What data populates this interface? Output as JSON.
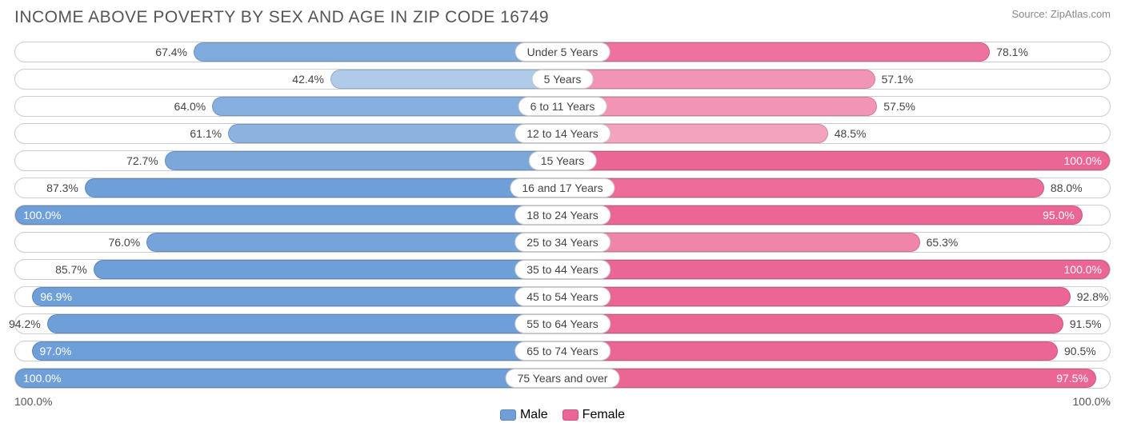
{
  "title": "INCOME ABOVE POVERTY BY SEX AND AGE IN ZIP CODE 16749",
  "source": "Source: ZipAtlas.com",
  "axis_left": "100.0%",
  "axis_right": "100.0%",
  "legend": {
    "male": "Male",
    "female": "Female"
  },
  "colors": {
    "male_base": "#6f9fd8",
    "female_base": "#ec6695",
    "row_border": "#cccccc",
    "text": "#444444"
  },
  "rows": [
    {
      "age": "Under 5 Years",
      "male": 67.4,
      "female": 78.1,
      "male_label": "67.4%",
      "female_label": "78.1%",
      "m_sat": 0.88,
      "f_sat": 0.92
    },
    {
      "age": "5 Years",
      "male": 42.4,
      "female": 57.1,
      "male_label": "42.4%",
      "female_label": "57.1%",
      "m_sat": 0.55,
      "f_sat": 0.7
    },
    {
      "age": "6 to 11 Years",
      "male": 64.0,
      "female": 57.5,
      "male_label": "64.0%",
      "female_label": "57.5%",
      "m_sat": 0.84,
      "f_sat": 0.7
    },
    {
      "age": "12 to 14 Years",
      "male": 61.1,
      "female": 48.5,
      "male_label": "61.1%",
      "female_label": "48.5%",
      "m_sat": 0.8,
      "f_sat": 0.6
    },
    {
      "age": "15 Years",
      "male": 72.7,
      "female": 100.0,
      "male_label": "72.7%",
      "female_label": "100.0%",
      "m_sat": 0.92,
      "f_sat": 1.0
    },
    {
      "age": "16 and 17 Years",
      "male": 87.3,
      "female": 88.0,
      "male_label": "87.3%",
      "female_label": "88.0%",
      "m_sat": 1.0,
      "f_sat": 0.96
    },
    {
      "age": "18 to 24 Years",
      "male": 100.0,
      "female": 95.0,
      "male_label": "100.0%",
      "female_label": "95.0%",
      "m_sat": 1.0,
      "f_sat": 1.0
    },
    {
      "age": "25 to 34 Years",
      "male": 76.0,
      "female": 65.3,
      "male_label": "76.0%",
      "female_label": "65.3%",
      "m_sat": 0.95,
      "f_sat": 0.8
    },
    {
      "age": "35 to 44 Years",
      "male": 85.7,
      "female": 100.0,
      "male_label": "85.7%",
      "female_label": "100.0%",
      "m_sat": 1.0,
      "f_sat": 1.0
    },
    {
      "age": "45 to 54 Years",
      "male": 96.9,
      "female": 92.8,
      "male_label": "96.9%",
      "female_label": "92.8%",
      "m_sat": 1.0,
      "f_sat": 1.0
    },
    {
      "age": "55 to 64 Years",
      "male": 94.2,
      "female": 91.5,
      "male_label": "94.2%",
      "female_label": "91.5%",
      "m_sat": 1.0,
      "f_sat": 1.0
    },
    {
      "age": "65 to 74 Years",
      "male": 97.0,
      "female": 90.5,
      "male_label": "97.0%",
      "female_label": "90.5%",
      "m_sat": 1.0,
      "f_sat": 1.0
    },
    {
      "age": "75 Years and over",
      "male": 100.0,
      "female": 97.5,
      "male_label": "100.0%",
      "female_label": "97.5%",
      "m_sat": 1.0,
      "f_sat": 1.0
    }
  ]
}
